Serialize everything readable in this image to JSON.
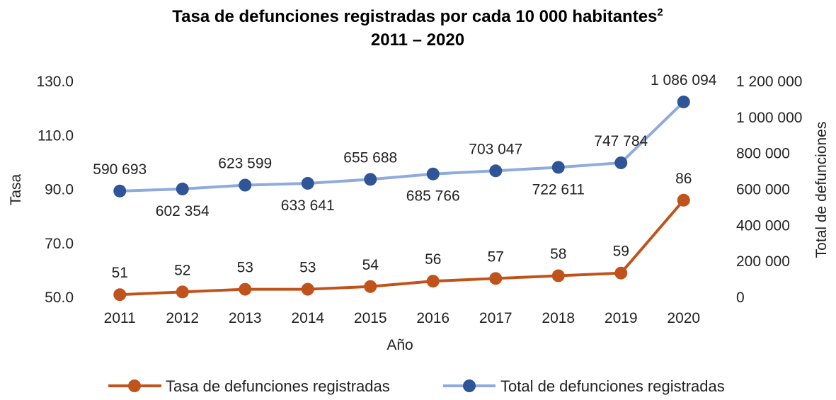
{
  "chart_data": {
    "type": "line",
    "title": "Tasa de defunciones registradas por cada 10 000 habitantes",
    "title_superscript": "2",
    "subtitle": "2011 – 2020",
    "xlabel": "Año",
    "ylabel_left": "Tasa",
    "ylabel_right": "Total de defunciones",
    "categories": [
      "2011",
      "2012",
      "2013",
      "2014",
      "2015",
      "2016",
      "2017",
      "2018",
      "2019",
      "2020"
    ],
    "y_left": {
      "range": [
        50,
        130
      ],
      "ticks": [
        50,
        70,
        90,
        110,
        130
      ],
      "tick_labels": [
        "50.0",
        "70.0",
        "90.0",
        "110.0",
        "130.0"
      ]
    },
    "y_right": {
      "range": [
        0,
        1200000
      ],
      "ticks": [
        0,
        200000,
        400000,
        600000,
        800000,
        1000000,
        1200000
      ],
      "tick_labels": [
        "0",
        "200 000",
        "400 000",
        "600 000",
        "800 000",
        "1 000 000",
        "1 200 000"
      ]
    },
    "grid": false,
    "legend_position": "bottom",
    "series": [
      {
        "name": "Tasa de defunciones registradas",
        "axis": "left",
        "color": "#c0531b",
        "values": [
          51,
          52,
          53,
          53,
          54,
          56,
          57,
          58,
          59,
          86
        ],
        "labels": [
          "51",
          "52",
          "53",
          "53",
          "54",
          "56",
          "57",
          "58",
          "59",
          "86"
        ]
      },
      {
        "name": "Total de defunciones registradas",
        "axis": "right",
        "color": "#8faadc",
        "marker_color": "#2f5597",
        "values": [
          590693,
          602354,
          623599,
          633641,
          655688,
          685766,
          703047,
          722611,
          747784,
          1086094
        ],
        "labels": [
          "590 693",
          "602 354",
          "623 599",
          "633 641",
          "655 688",
          "685 766",
          "703 047",
          "722 611",
          "747 784",
          "1 086 094"
        ]
      }
    ]
  }
}
